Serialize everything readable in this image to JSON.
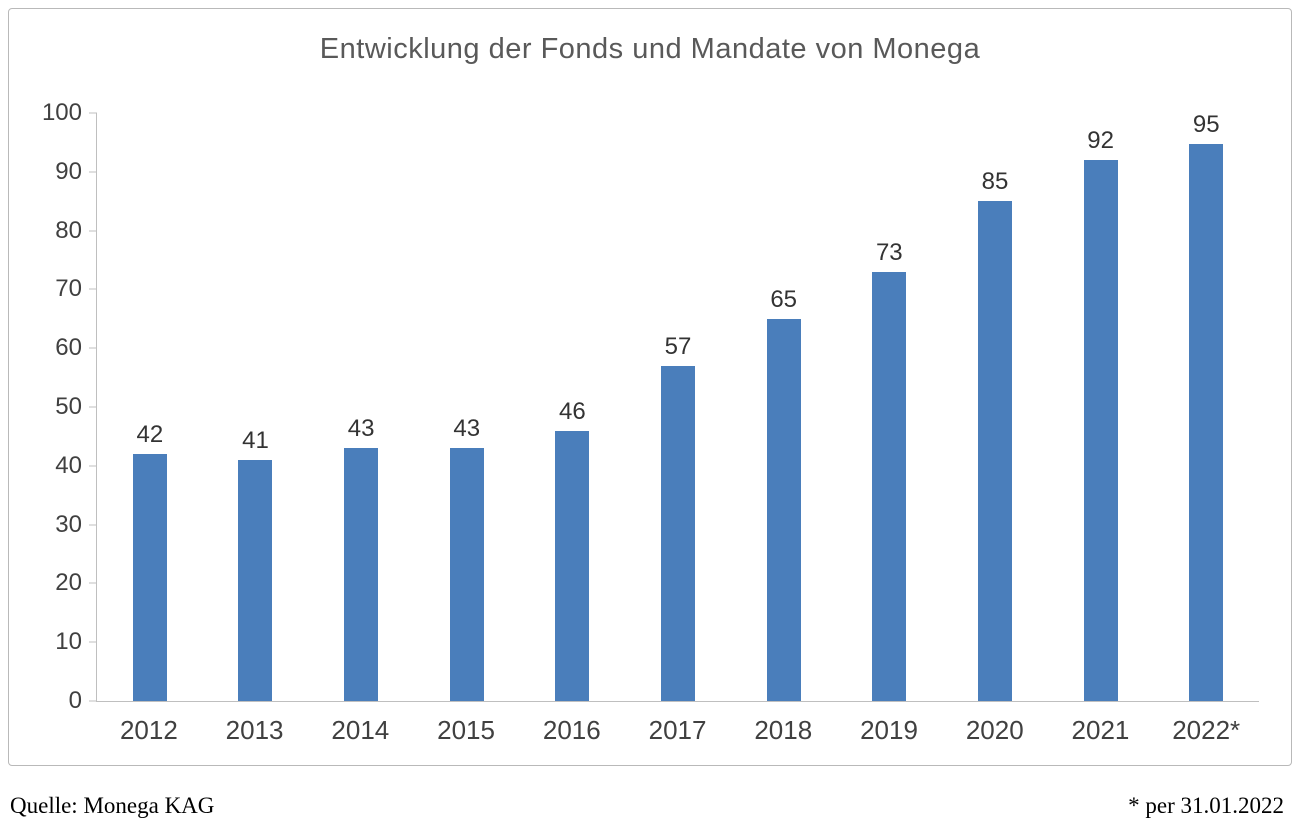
{
  "chart_data": {
    "type": "bar",
    "title": "Entwicklung der Fonds und Mandate von Monega",
    "categories": [
      "2012",
      "2013",
      "2014",
      "2015",
      "2016",
      "2017",
      "2018",
      "2019",
      "2020",
      "2021",
      "2022*"
    ],
    "values": [
      42,
      41,
      43,
      43,
      46,
      57,
      65,
      73,
      85,
      92,
      95
    ],
    "xlabel": "",
    "ylabel": "",
    "ylim": [
      0,
      100
    ],
    "ytick_step": 10,
    "grid": false,
    "legend": false,
    "value_labels_shown": true,
    "source_note": "Quelle: Monega KAG",
    "footnote": "* per 31.01.2022"
  },
  "footer": {
    "source": "Quelle: Monega KAG",
    "note": "* per 31.01.2022"
  },
  "colors": {
    "bar": "#4A7EBB",
    "title_text": "#595959",
    "axis_text": "#404040",
    "value_text": "#333333",
    "axis_line": "#BFBFBF",
    "frame_border": "#B9B9B9"
  }
}
